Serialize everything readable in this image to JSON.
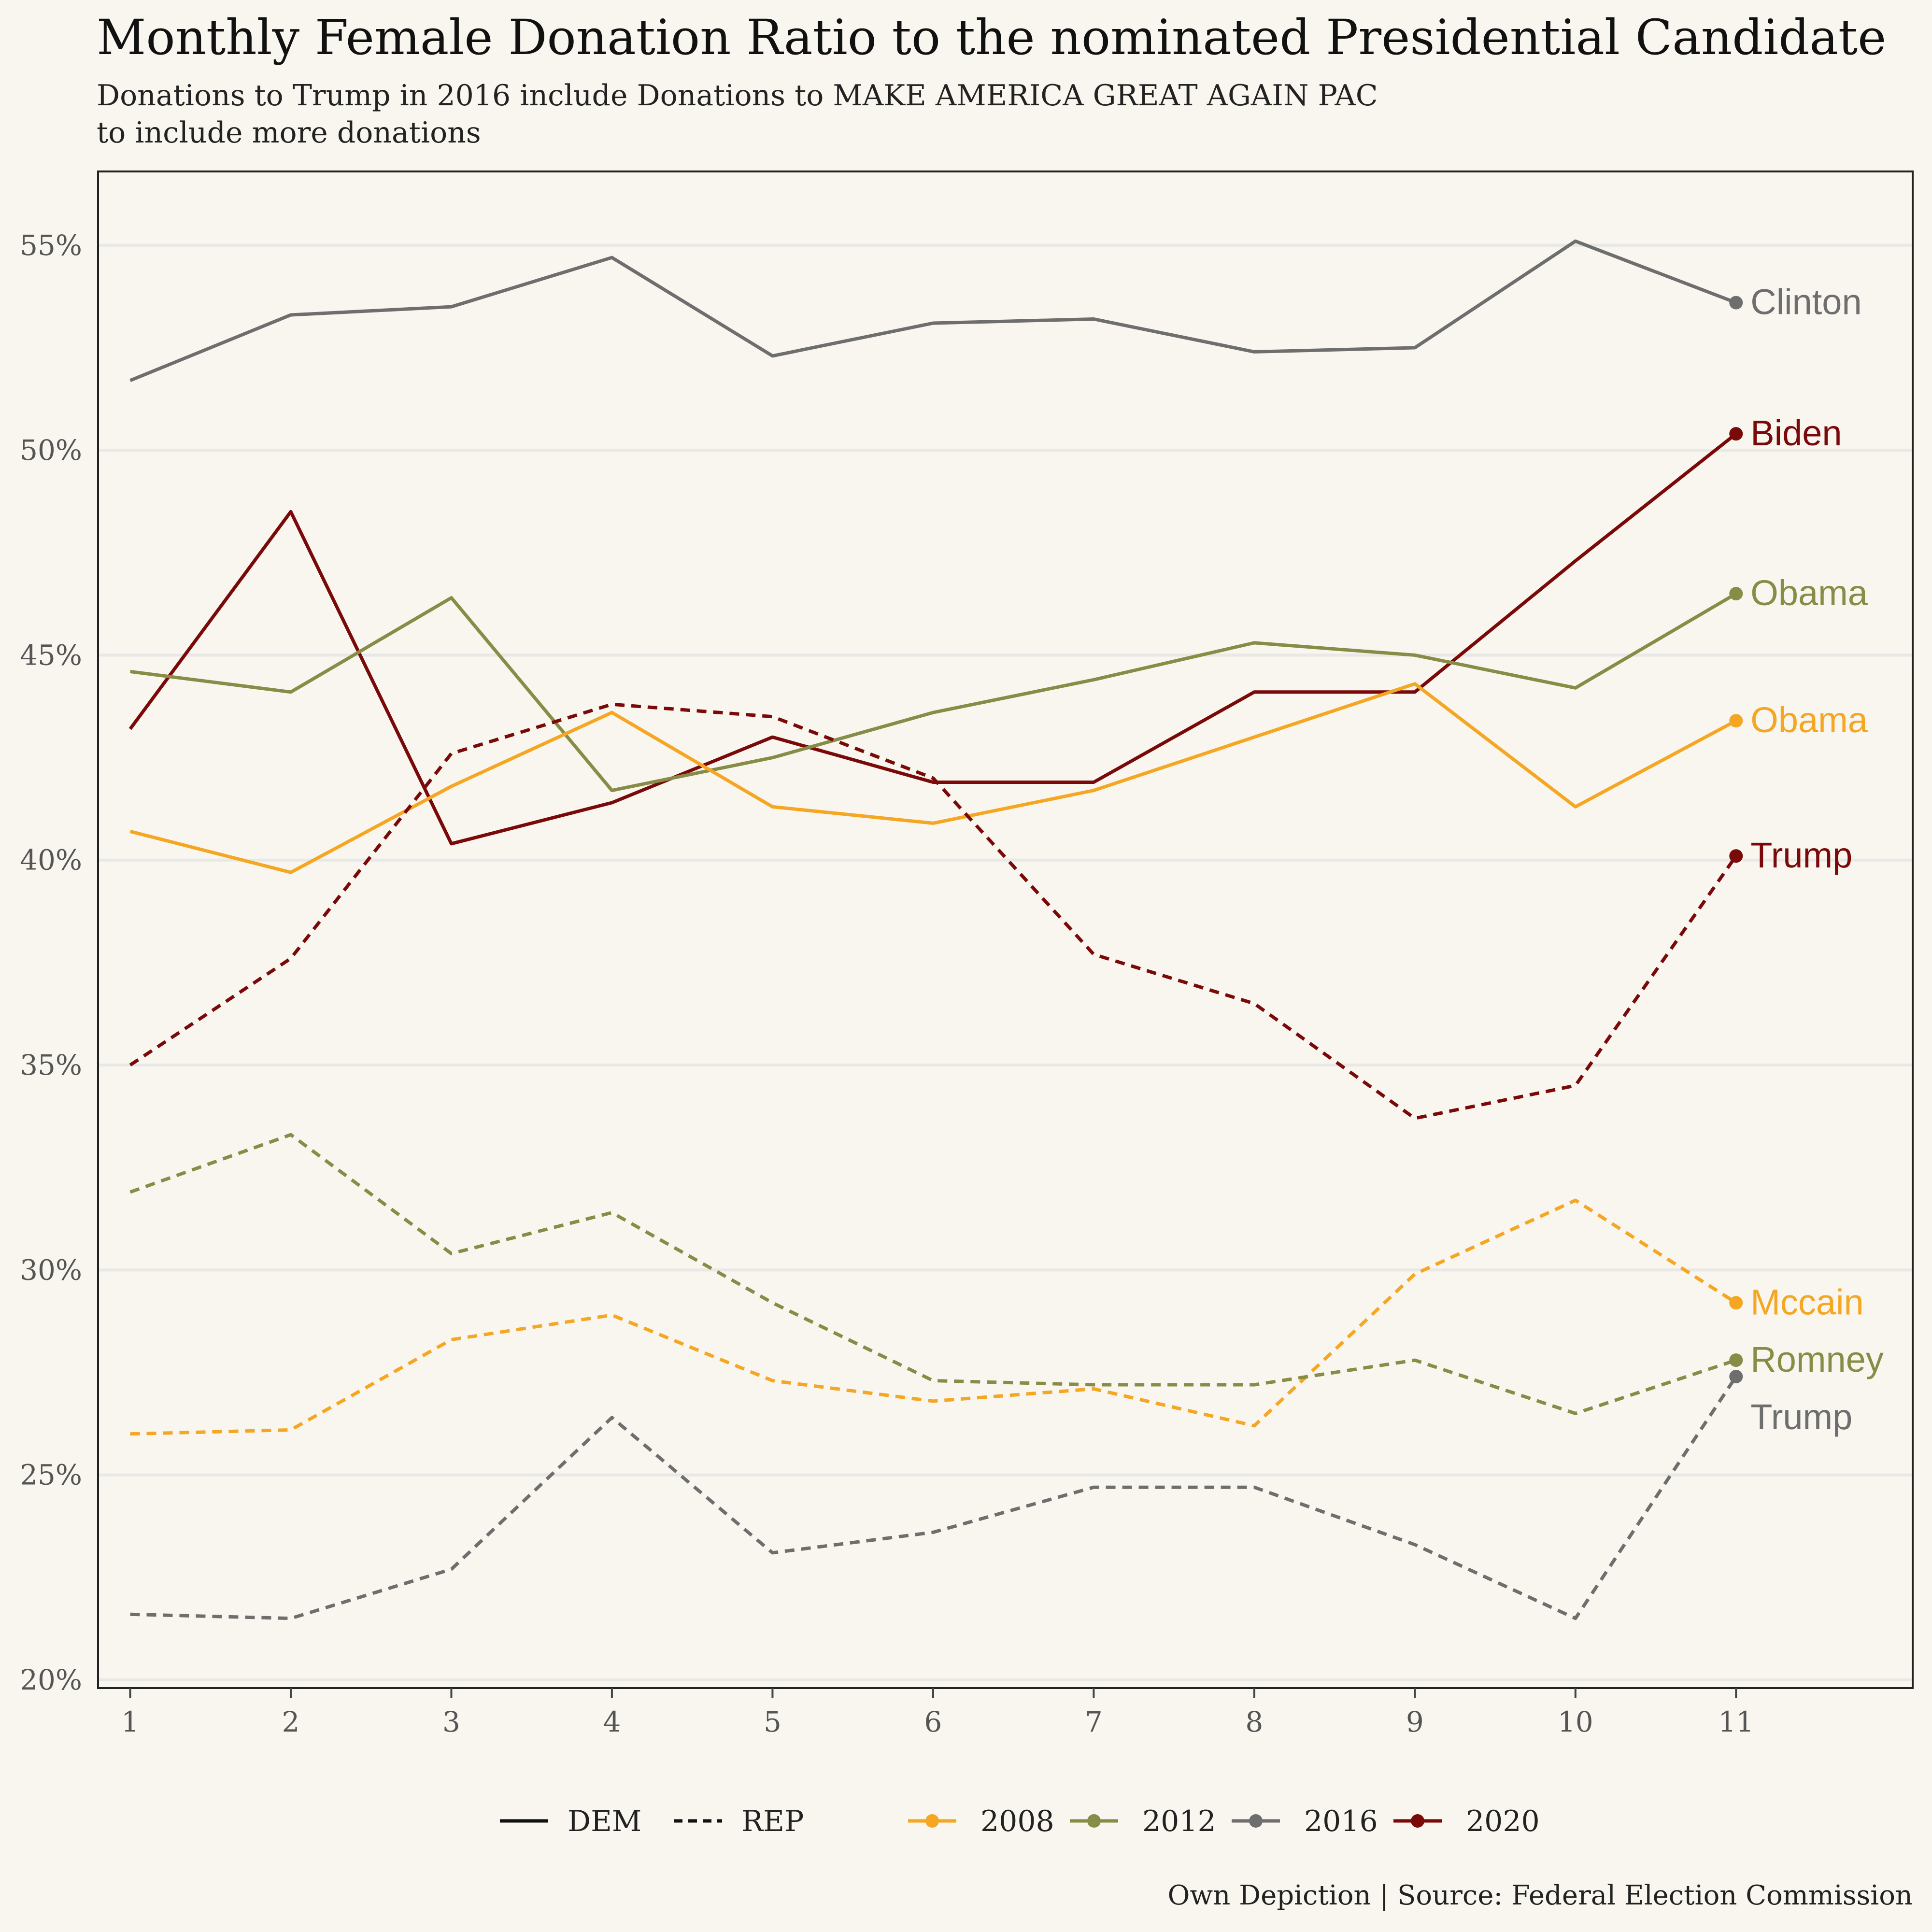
{
  "title": "Monthly Female Donation Ratio to the nominated Presidential Candidate",
  "subtitle_line1": "Donations to Trump in 2016 include Donations to MAKE AMERICA GREAT AGAIN PAC",
  "subtitle_line2": "to include more donations",
  "caption": "Own Depiction | Source: Federal Election Commission",
  "colors": {
    "background": "#F8F6EE",
    "grid": "#E8E8E6",
    "y2008": "#F5A623",
    "y2012": "#878C47",
    "y2016": "#6E6E6E",
    "y2020": "#7A0A0A"
  },
  "chart_data": {
    "type": "line",
    "x": [
      1,
      2,
      3,
      4,
      5,
      6,
      7,
      8,
      9,
      10,
      11
    ],
    "x_ticks": [
      "1",
      "2",
      "3",
      "4",
      "5",
      "6",
      "7",
      "8",
      "9",
      "10",
      "11"
    ],
    "y_ticks": [
      "20%",
      "25%",
      "30%",
      "35%",
      "40%",
      "45%",
      "50%",
      "55%"
    ],
    "xlim": [
      0.8,
      12.1
    ],
    "ylim": [
      19.8,
      56.8
    ],
    "grid": true,
    "legend": {
      "position": "bottom",
      "linetype_entries": [
        {
          "label": "DEM",
          "dash": "solid"
        },
        {
          "label": "REP",
          "dash": "dotted"
        }
      ],
      "color_entries": [
        {
          "label": "2008",
          "color": "#F5A623"
        },
        {
          "label": "2012",
          "color": "#878C47"
        },
        {
          "label": "2016",
          "color": "#6E6E6E"
        },
        {
          "label": "2020",
          "color": "#7A0A0A"
        }
      ]
    },
    "series": [
      {
        "year": "2016",
        "party": "DEM",
        "label": "Clinton",
        "color": "#6E6E6E",
        "dash": "solid",
        "values": [
          51.7,
          53.3,
          53.5,
          54.7,
          52.3,
          53.1,
          53.2,
          52.4,
          52.5,
          55.1,
          53.6
        ]
      },
      {
        "year": "2020",
        "party": "DEM",
        "label": "Biden",
        "color": "#7A0A0A",
        "dash": "solid",
        "values": [
          43.2,
          48.5,
          40.4,
          41.4,
          43.0,
          41.9,
          41.9,
          44.1,
          44.1,
          47.3,
          50.4
        ]
      },
      {
        "year": "2012",
        "party": "DEM",
        "label": "Obama",
        "color": "#878C47",
        "dash": "solid",
        "values": [
          44.6,
          44.1,
          46.4,
          41.7,
          42.5,
          43.6,
          44.4,
          45.3,
          45.0,
          44.2,
          46.5
        ]
      },
      {
        "year": "2008",
        "party": "DEM",
        "label": "Obama",
        "color": "#F5A623",
        "dash": "solid",
        "values": [
          40.7,
          39.7,
          41.8,
          43.6,
          41.3,
          40.9,
          41.7,
          43.0,
          44.3,
          41.3,
          43.4
        ]
      },
      {
        "year": "2020",
        "party": "REP",
        "label": "Trump",
        "color": "#7A0A0A",
        "dash": "dotted",
        "values": [
          35.0,
          37.6,
          42.6,
          43.8,
          43.5,
          42.0,
          37.7,
          36.5,
          33.7,
          34.5,
          40.1
        ]
      },
      {
        "year": "2008",
        "party": "REP",
        "label": "Mccain",
        "color": "#F5A623",
        "dash": "dotted",
        "values": [
          26.0,
          26.1,
          28.3,
          28.9,
          27.3,
          26.8,
          27.1,
          26.2,
          29.9,
          31.7,
          29.2
        ]
      },
      {
        "year": "2012",
        "party": "REP",
        "label": "Romney",
        "color": "#878C47",
        "dash": "dotted",
        "values": [
          31.9,
          33.3,
          30.4,
          31.4,
          29.2,
          27.3,
          27.2,
          27.2,
          27.8,
          26.5,
          27.8
        ]
      },
      {
        "year": "2016",
        "party": "REP",
        "label": "Trump",
        "color": "#6E6E6E",
        "dash": "dotted",
        "values": [
          21.6,
          21.5,
          22.7,
          26.4,
          23.1,
          23.6,
          24.7,
          24.7,
          23.3,
          21.5,
          27.4
        ]
      }
    ]
  }
}
